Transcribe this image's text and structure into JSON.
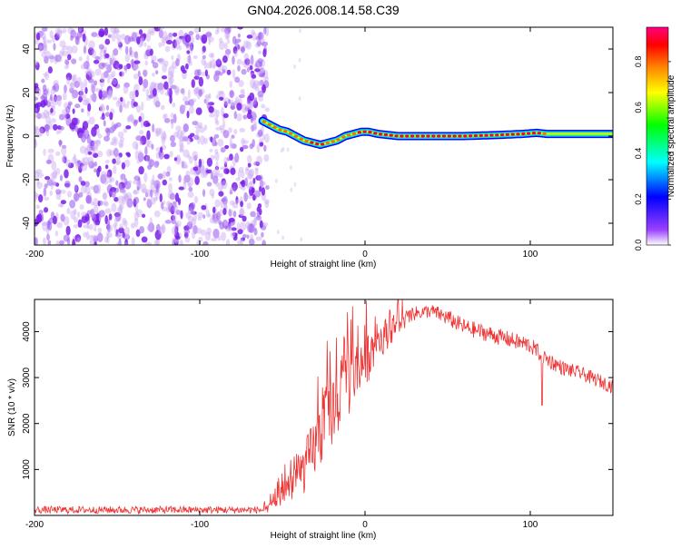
{
  "title": "GN04.2026.008.14.58.C39",
  "chart_data": [
    {
      "type": "heatmap",
      "name": "spectrogram",
      "xlabel": "Height of straight line (km)",
      "ylabel": "Frequency (Hz)",
      "xlim": [
        -200,
        150
      ],
      "ylim": [
        -50,
        50
      ],
      "xticks": [
        -200,
        -100,
        0,
        100
      ],
      "yticks": [
        -40,
        -20,
        0,
        20,
        40
      ],
      "noise_region_x": [
        -200,
        -62
      ],
      "signal_start_x": -62,
      "track": {
        "x": [
          -62,
          -57,
          -52,
          -47,
          -42,
          -37,
          -32,
          -27,
          -22,
          -17,
          -12,
          -7,
          -2,
          2,
          8,
          20,
          40,
          60,
          80,
          95,
          104,
          110,
          130,
          150
        ],
        "freq": [
          7,
          5,
          3,
          2,
          0,
          -2,
          -3,
          -4,
          -3,
          -2,
          0,
          1,
          2,
          2,
          1,
          0,
          0,
          0,
          0.5,
          1,
          1.5,
          1,
          1,
          1
        ],
        "amplitude": [
          0.7,
          0.75,
          0.8,
          0.8,
          0.85,
          0.85,
          0.9,
          0.9,
          0.85,
          0.85,
          0.8,
          0.85,
          0.9,
          0.9,
          0.9,
          0.9,
          0.95,
          0.95,
          0.9,
          0.9,
          0.95,
          0.85,
          0.6,
          0.55
        ]
      },
      "colorbar": {
        "label": "Normalized spectral amplitude",
        "range": [
          0,
          0.95
        ],
        "ticks": [
          "0.0",
          "0.2",
          "0.4",
          "0.6",
          "0.8"
        ],
        "tick_values": [
          0,
          0.2,
          0.4,
          0.6,
          0.8
        ],
        "colors": [
          "#ffffff",
          "#8000ff",
          "#0000ff",
          "#00ffff",
          "#00ff00",
          "#ffff00",
          "#ff8000",
          "#ff0000",
          "#ff0080"
        ]
      }
    },
    {
      "type": "line",
      "name": "snr",
      "xlabel": "Height of straight line (km)",
      "ylabel": "SNR (10 * v/v)",
      "xlim": [
        -200,
        150
      ],
      "ylim": [
        0,
        4700
      ],
      "xticks": [
        -200,
        -100,
        0,
        100
      ],
      "yticks": [
        1000,
        2000,
        3000,
        4000
      ],
      "color": "#ee3333",
      "envelope": {
        "x": [
          -200,
          -150,
          -100,
          -60,
          -55,
          -50,
          -45,
          -40,
          -35,
          -30,
          -25,
          -20,
          -15,
          -10,
          -5,
          0,
          5,
          10,
          20,
          30,
          40,
          50,
          60,
          80,
          100,
          110,
          120,
          130,
          140,
          150
        ],
        "mean": [
          120,
          120,
          120,
          120,
          300,
          500,
          700,
          900,
          1200,
          1600,
          2000,
          2400,
          2700,
          3000,
          3200,
          3400,
          3700,
          3900,
          4200,
          4400,
          4450,
          4300,
          4100,
          3900,
          3700,
          3400,
          3200,
          3100,
          2950,
          2800
        ],
        "noise": [
          80,
          80,
          80,
          80,
          150,
          250,
          400,
          500,
          600,
          700,
          750,
          800,
          800,
          800,
          700,
          600,
          500,
          400,
          250,
          150,
          150,
          180,
          180,
          180,
          180,
          180,
          160,
          150,
          150,
          150
        ]
      },
      "dips": [
        {
          "x": 107,
          "value": 2400
        }
      ]
    }
  ]
}
